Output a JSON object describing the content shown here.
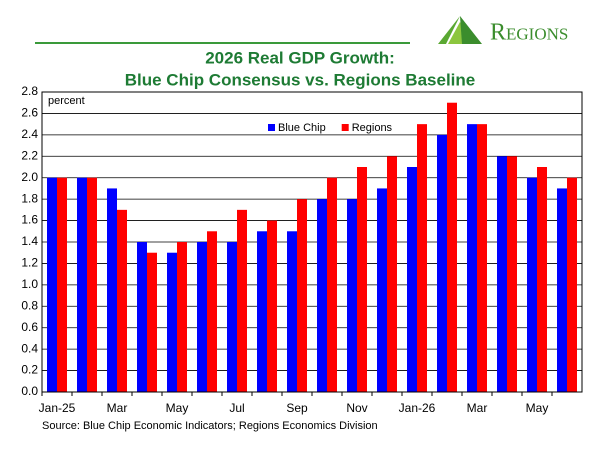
{
  "brand": "Regions",
  "chart_data": {
    "type": "bar",
    "title": "2026 Real GDP Growth:",
    "subtitle": "Blue Chip Consensus vs. Regions Baseline",
    "y_label": "percent",
    "source": "Source: Blue Chip Economic Indicators; Regions Economics Division",
    "categories": [
      "Jan-25",
      null,
      "Mar",
      null,
      "May",
      null,
      "Jul",
      null,
      "Sep",
      null,
      "Nov",
      null,
      "Jan-26",
      null,
      "Mar",
      null,
      "May",
      null
    ],
    "series": [
      {
        "name": "Blue Chip",
        "color": "#0000ff",
        "values": [
          2.0,
          2.0,
          1.9,
          1.4,
          1.3,
          1.4,
          1.4,
          1.5,
          1.5,
          1.8,
          1.8,
          1.9,
          2.1,
          2.4,
          2.5,
          2.2,
          2.0,
          1.9
        ]
      },
      {
        "name": "Regions",
        "color": "#ff0000",
        "values": [
          2.0,
          2.0,
          1.7,
          1.3,
          1.4,
          1.5,
          1.7,
          1.6,
          1.8,
          2.0,
          2.1,
          2.2,
          2.5,
          2.7,
          2.5,
          2.2,
          2.1,
          2.0
        ]
      }
    ],
    "ylim": [
      0,
      2.8
    ],
    "yticks": [
      {
        "value": 0,
        "label": "0.0"
      },
      0.2,
      0.4,
      0.6,
      0.8,
      {
        "value": 1,
        "label": "1.0"
      },
      1.2,
      1.4,
      1.6,
      1.8,
      {
        "value": 2,
        "label": "2.0"
      },
      2.2,
      2.4,
      2.6,
      2.8
    ],
    "grid": true,
    "legend": "top"
  }
}
